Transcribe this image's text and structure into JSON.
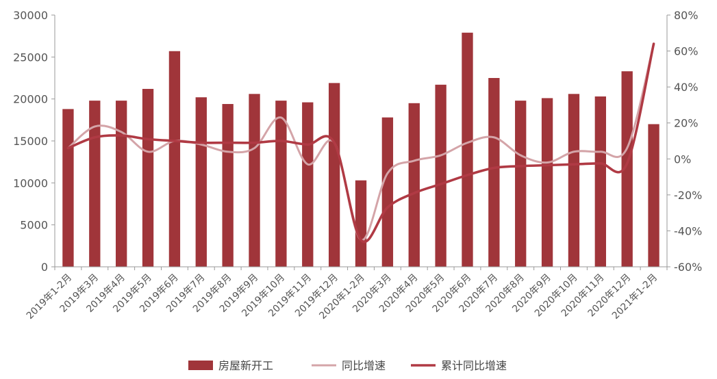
{
  "chart_data": {
    "type": "bar",
    "categories": [
      "2019年1-2月",
      "2019年3月",
      "2019年4月",
      "2019年5月",
      "2019年6月",
      "2019年7月",
      "2019年8月",
      "2019年9月",
      "2019年10月",
      "2019年11月",
      "2019年12月",
      "2020年1-2月",
      "2020年3月",
      "2020年4月",
      "2020年5月",
      "2020年6月",
      "2020年7月",
      "2020年8月",
      "2020年9月",
      "2020年10月",
      "2020年11月",
      "2020年12月",
      "2021年1-2月"
    ],
    "series": [
      {
        "name": "房屋新开工",
        "type": "bar",
        "axis": "left",
        "color": "#a0353a",
        "values": [
          18800,
          19800,
          19800,
          21200,
          25700,
          20200,
          19400,
          20600,
          19800,
          19600,
          21900,
          10300,
          17800,
          19500,
          21700,
          27900,
          22500,
          19800,
          20100,
          20600,
          20300,
          23300,
          17000
        ]
      },
      {
        "name": "同比增速",
        "type": "line",
        "axis": "right",
        "color": "#d4a4a8",
        "values": [
          6,
          18,
          15,
          4,
          10,
          8,
          4,
          6,
          23,
          -3,
          9,
          -45,
          -8,
          -1,
          2,
          9,
          12,
          2,
          -2,
          4,
          4,
          6,
          64
        ]
      },
      {
        "name": "累计同比增速",
        "type": "line",
        "axis": "right",
        "color": "#b03a44",
        "values": [
          6,
          12,
          13,
          11,
          10,
          9,
          9,
          9,
          10,
          8,
          9,
          -45,
          -27,
          -19,
          -14,
          -9,
          -5,
          -4,
          -3.5,
          -3,
          -2.5,
          -2.5,
          64
        ]
      }
    ],
    "y_left": {
      "min": 0,
      "max": 30000,
      "ticks": [
        "0",
        "5000",
        "10000",
        "15000",
        "20000",
        "25000",
        "30000"
      ]
    },
    "y_right": {
      "min": -60,
      "max": 80,
      "ticks": [
        "-60%",
        "-40%",
        "-20%",
        "0%",
        "20%",
        "40%",
        "60%",
        "80%"
      ]
    },
    "legend": {
      "position": "bottom",
      "items": [
        "房屋新开工",
        "同比增速",
        "累计同比增速"
      ]
    },
    "grid": false
  }
}
